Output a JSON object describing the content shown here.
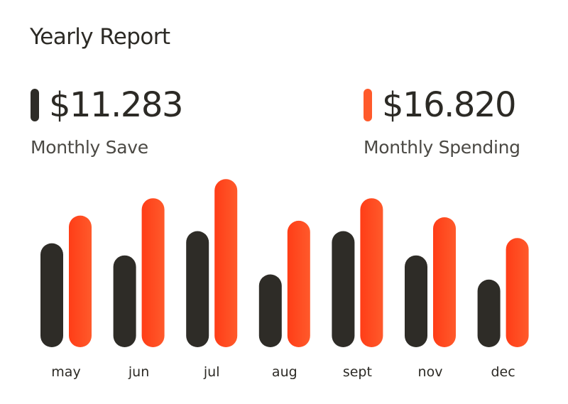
{
  "header": {
    "title": "Yearly Report"
  },
  "summary": {
    "save": {
      "value": "$11.283",
      "label": "Monthly Save"
    },
    "spending": {
      "value": "$16.820",
      "label": "Monthly Spending"
    }
  },
  "colors": {
    "save": "#2e2c27",
    "spending_light": "#ff5a2b",
    "spending_dark": "#ff3d17"
  },
  "chart_data": {
    "type": "bar",
    "categories": [
      "may",
      "jun",
      "jul",
      "aug",
      "sept",
      "nov",
      "dec"
    ],
    "series": [
      {
        "key": "save",
        "values": [
          60,
          53,
          67,
          42,
          67,
          53,
          39
        ]
      },
      {
        "key": "spending",
        "values": [
          76,
          86,
          97,
          73,
          86,
          75,
          63
        ]
      }
    ],
    "ylim": [
      0,
      100
    ],
    "grid": false
  }
}
